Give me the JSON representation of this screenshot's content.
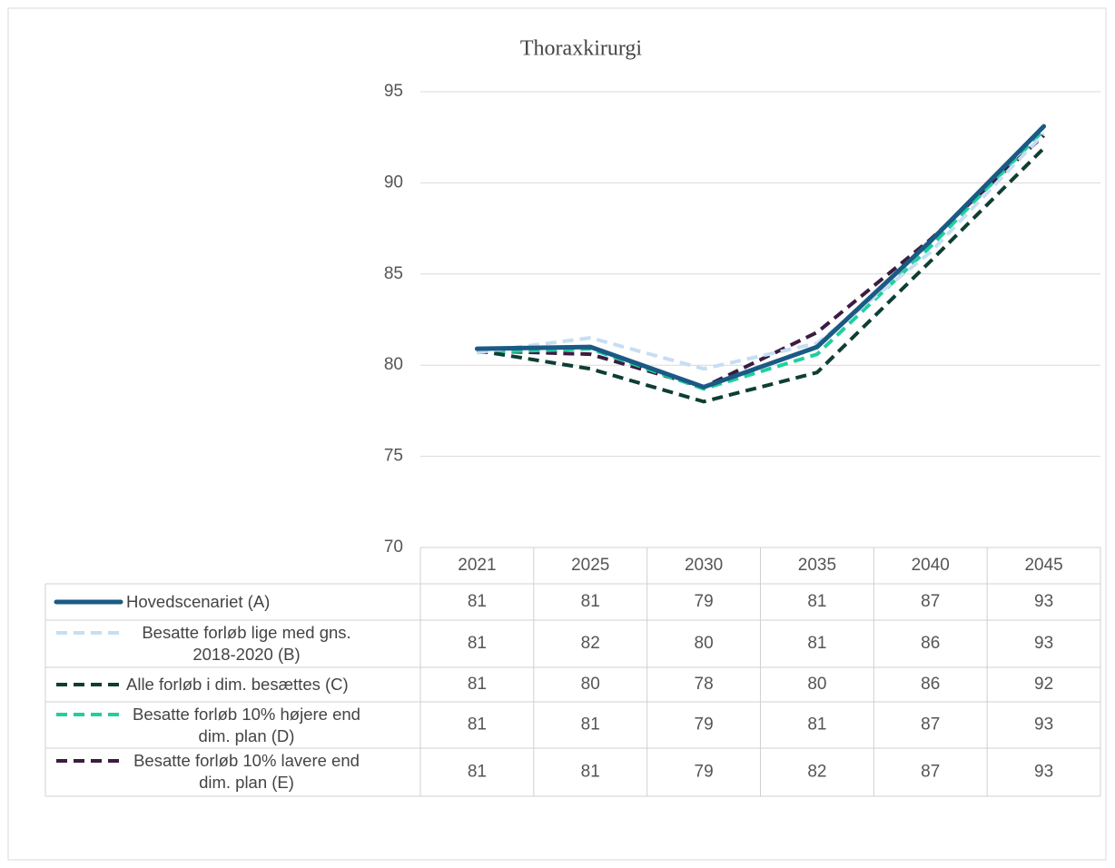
{
  "chart_data": {
    "type": "line",
    "title": "Thoraxkirurgi",
    "categories": [
      "2021",
      "2025",
      "2030",
      "2035",
      "2040",
      "2045"
    ],
    "ylim": [
      70,
      95
    ],
    "yticks": [
      70,
      75,
      80,
      85,
      90,
      95
    ],
    "grid": true,
    "series": [
      {
        "name": "Hovedscenariet (A)",
        "color": "#1a5a85",
        "line_style": "solid",
        "values": [
          80.9,
          81.0,
          78.8,
          81.0,
          86.8,
          93.1
        ],
        "value_labels": [
          "81",
          "81",
          "79",
          "81",
          "87",
          "93"
        ]
      },
      {
        "name": "Besatte forløb lige med gns. 2018-2020 (B)",
        "color": "#c6def4",
        "line_style": "dashed",
        "values": [
          80.7,
          81.5,
          79.8,
          81.2,
          86.2,
          92.7
        ],
        "value_labels": [
          "81",
          "82",
          "80",
          "81",
          "86",
          "93"
        ]
      },
      {
        "name": "Alle forløb i dim. besættes (C)",
        "color": "#0e3e34",
        "line_style": "dashed",
        "values": [
          80.8,
          79.8,
          78.0,
          79.6,
          85.7,
          91.9
        ],
        "value_labels": [
          "81",
          "80",
          "78",
          "80",
          "86",
          "92"
        ]
      },
      {
        "name": "Besatte forløb 10% højere end dim. plan (D)",
        "color": "#1fcf9e",
        "line_style": "dashed",
        "values": [
          80.7,
          80.9,
          78.7,
          80.6,
          86.5,
          92.9
        ],
        "value_labels": [
          "81",
          "81",
          "79",
          "81",
          "87",
          "93"
        ]
      },
      {
        "name": "Besatte forløb 10% lavere end dim. plan (E)",
        "color": "#3c1c40",
        "line_style": "dashed",
        "values": [
          80.8,
          80.6,
          78.8,
          81.8,
          86.9,
          92.6
        ],
        "value_labels": [
          "81",
          "81",
          "79",
          "82",
          "87",
          "93"
        ]
      }
    ]
  }
}
